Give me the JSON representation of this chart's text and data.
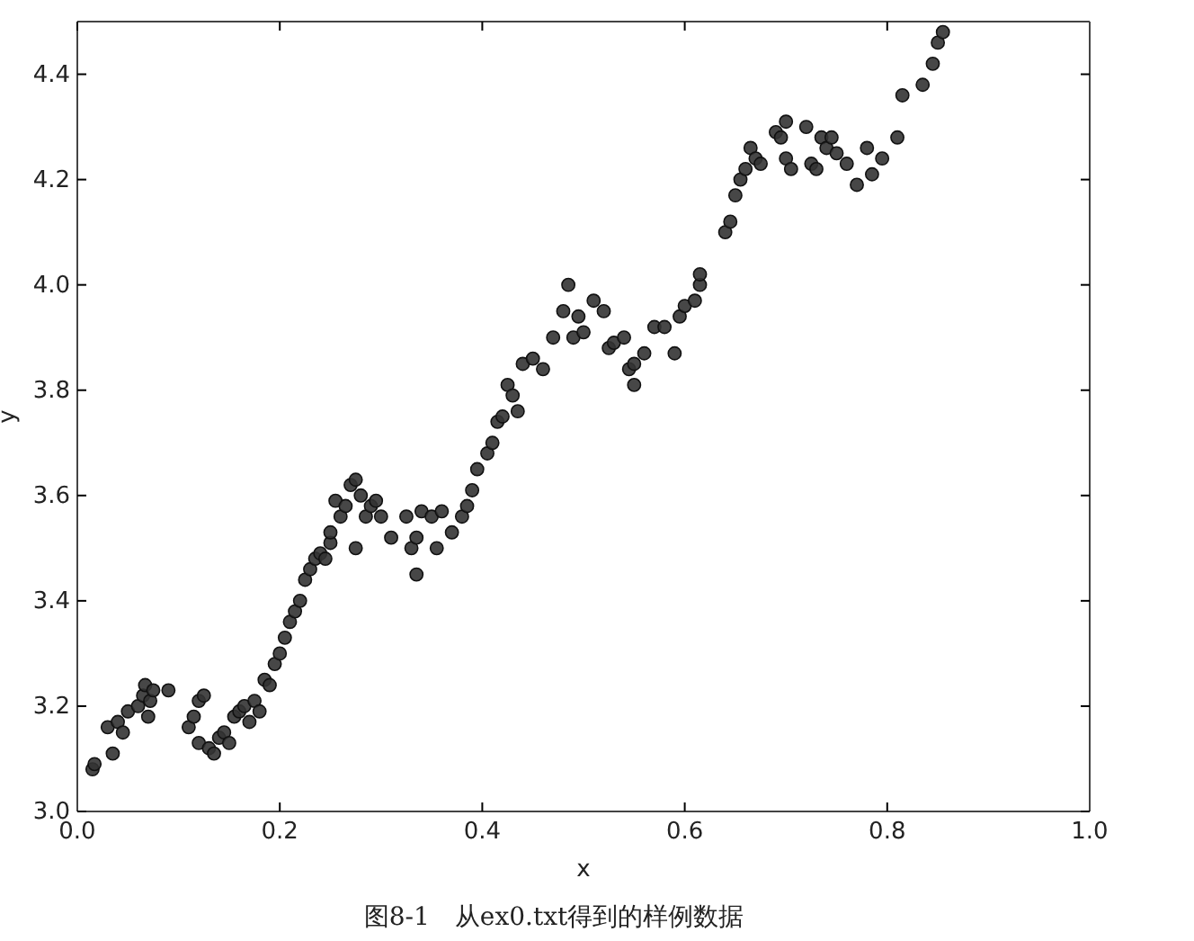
{
  "chart_data": {
    "type": "scatter",
    "xlabel": "x",
    "ylabel": "y",
    "annotations": [
      "图8-1　从ex0.txt得到的样例数据"
    ],
    "xlim": [
      0,
      1.0
    ],
    "xticks": [
      {
        "value": 0,
        "label": "0.0"
      },
      0.2,
      0.4,
      0.6,
      0.8,
      {
        "value": 1,
        "label": "1.0"
      }
    ],
    "ylim": [
      3.0,
      4.5
    ],
    "yticks": [
      {
        "value": 3,
        "label": "3.0"
      },
      3.2,
      3.4,
      3.6,
      3.8,
      {
        "value": 4,
        "label": "4.0"
      },
      4.2,
      4.4
    ],
    "marker": "circle",
    "grid": false,
    "series": [
      {
        "color": "#333333",
        "x": [
          0.015,
          0.017,
          0.03,
          0.035,
          0.04,
          0.045,
          0.05,
          0.06,
          0.065,
          0.067,
          0.07,
          0.072,
          0.075,
          0.09,
          0.11,
          0.115,
          0.12,
          0.12,
          0.125,
          0.13,
          0.135,
          0.14,
          0.145,
          0.15,
          0.155,
          0.16,
          0.165,
          0.17,
          0.175,
          0.18,
          0.185,
          0.19,
          0.195,
          0.2,
          0.205,
          0.21,
          0.215,
          0.22,
          0.225,
          0.23,
          0.235,
          0.24,
          0.245,
          0.25,
          0.25,
          0.255,
          0.26,
          0.265,
          0.27,
          0.275,
          0.275,
          0.28,
          0.285,
          0.29,
          0.295,
          0.3,
          0.31,
          0.325,
          0.33,
          0.335,
          0.335,
          0.34,
          0.35,
          0.355,
          0.36,
          0.37,
          0.38,
          0.385,
          0.39,
          0.395,
          0.405,
          0.41,
          0.415,
          0.42,
          0.425,
          0.43,
          0.435,
          0.44,
          0.45,
          0.46,
          0.47,
          0.48,
          0.485,
          0.49,
          0.495,
          0.5,
          0.51,
          0.52,
          0.525,
          0.53,
          0.54,
          0.545,
          0.55,
          0.55,
          0.56,
          0.57,
          0.58,
          0.59,
          0.595,
          0.6,
          0.61,
          0.615,
          0.615,
          0.64,
          0.645,
          0.65,
          0.655,
          0.66,
          0.665,
          0.67,
          0.675,
          0.69,
          0.695,
          0.7,
          0.7,
          0.705,
          0.72,
          0.725,
          0.73,
          0.735,
          0.74,
          0.745,
          0.75,
          0.76,
          0.77,
          0.78,
          0.785,
          0.795,
          0.81,
          0.815,
          0.835,
          0.845,
          0.85,
          0.855
        ],
        "values": [
          3.08,
          3.09,
          3.16,
          3.11,
          3.17,
          3.15,
          3.19,
          3.2,
          3.22,
          3.24,
          3.18,
          3.21,
          3.23,
          3.23,
          3.16,
          3.18,
          3.13,
          3.21,
          3.22,
          3.12,
          3.11,
          3.14,
          3.15,
          3.13,
          3.18,
          3.19,
          3.2,
          3.17,
          3.21,
          3.19,
          3.25,
          3.24,
          3.28,
          3.3,
          3.33,
          3.36,
          3.38,
          3.4,
          3.44,
          3.46,
          3.48,
          3.49,
          3.48,
          3.51,
          3.53,
          3.59,
          3.56,
          3.58,
          3.62,
          3.63,
          3.5,
          3.6,
          3.56,
          3.58,
          3.59,
          3.56,
          3.52,
          3.56,
          3.5,
          3.45,
          3.52,
          3.57,
          3.56,
          3.5,
          3.57,
          3.53,
          3.56,
          3.58,
          3.61,
          3.65,
          3.68,
          3.7,
          3.74,
          3.75,
          3.81,
          3.79,
          3.76,
          3.85,
          3.86,
          3.84,
          3.9,
          3.95,
          4.0,
          3.9,
          3.94,
          3.91,
          3.97,
          3.95,
          3.88,
          3.89,
          3.9,
          3.84,
          3.81,
          3.85,
          3.87,
          3.92,
          3.92,
          3.87,
          3.94,
          3.96,
          3.97,
          4.0,
          4.02,
          4.1,
          4.12,
          4.17,
          4.2,
          4.22,
          4.26,
          4.24,
          4.23,
          4.29,
          4.28,
          4.31,
          4.24,
          4.22,
          4.3,
          4.23,
          4.22,
          4.28,
          4.26,
          4.28,
          4.25,
          4.23,
          4.19,
          4.26,
          4.21,
          4.24,
          4.28,
          4.36,
          4.38,
          4.42,
          4.46,
          4.48
        ]
      }
    ]
  }
}
